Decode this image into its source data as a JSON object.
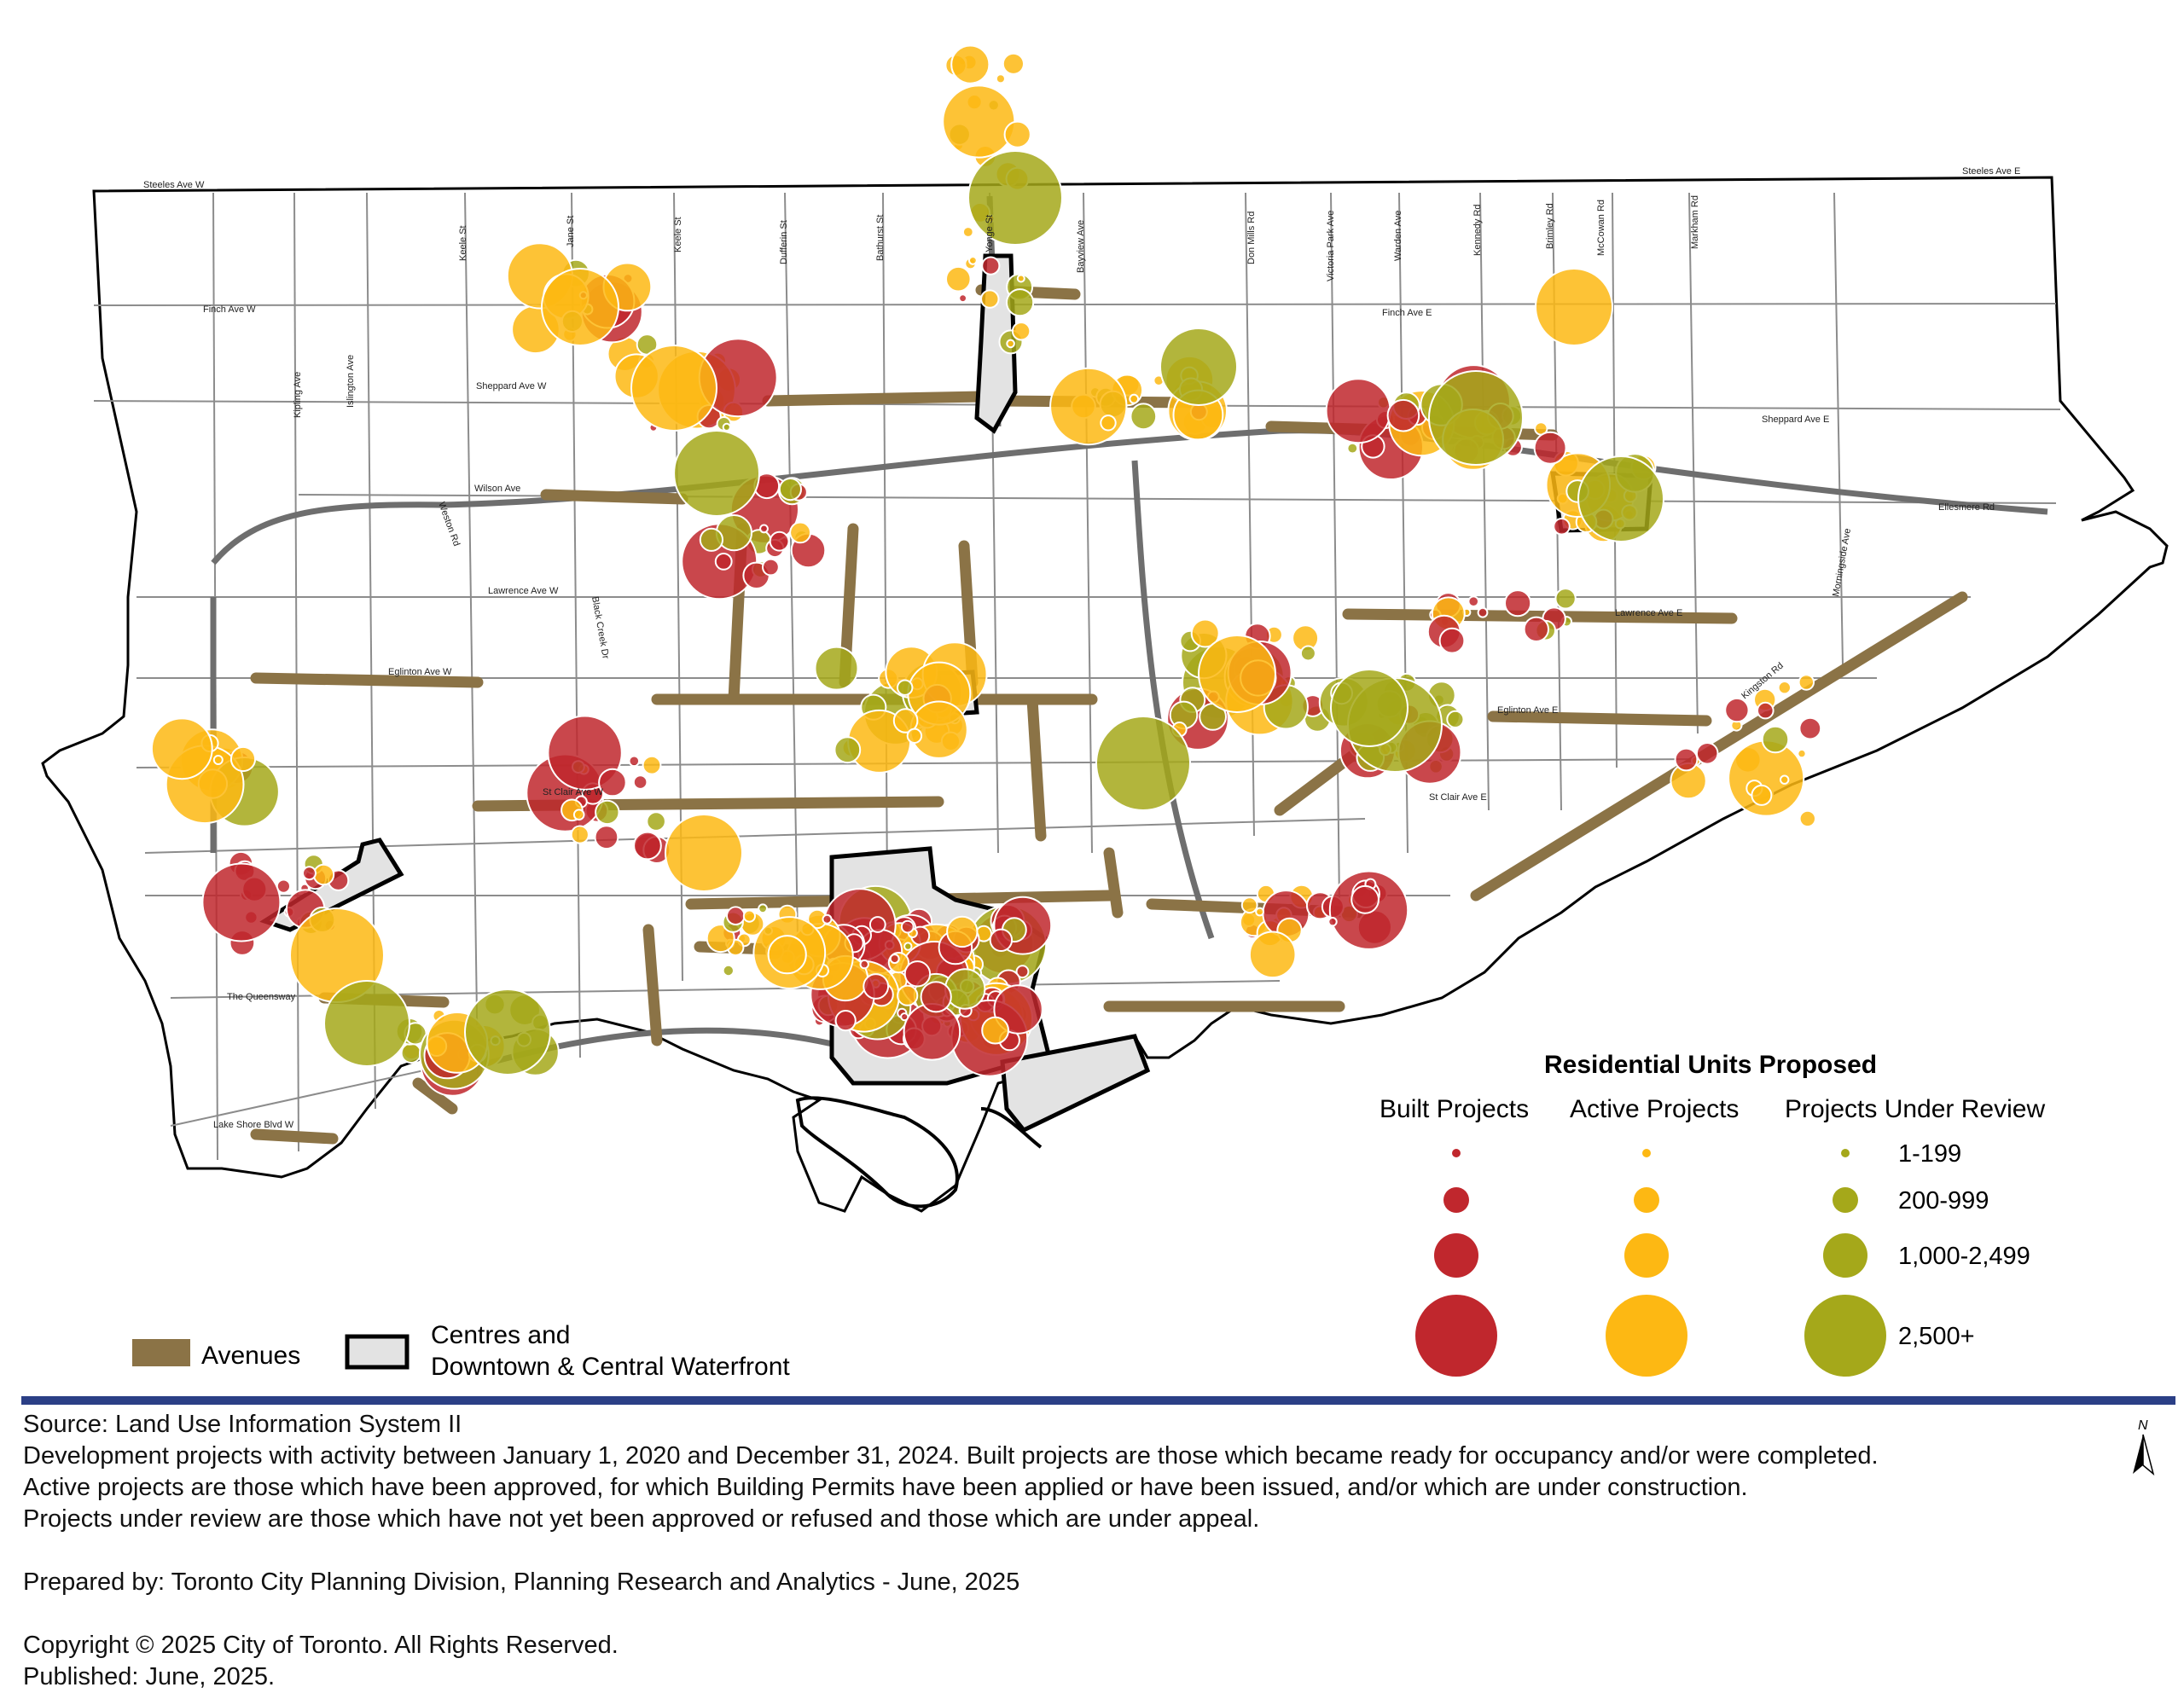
{
  "roads": {
    "steeles_w": "Steeles Ave W",
    "steeles_e": "Steeles Ave E",
    "finch_w": "Finch Ave W",
    "finch_e": "Finch Ave E",
    "sheppard_w": "Sheppard Ave W",
    "sheppard_e": "Sheppard Ave E",
    "wilson": "Wilson Ave",
    "ellesmere": "Ellesmere Rd",
    "lawrence_w": "Lawrence Ave W",
    "lawrence_e": "Lawrence Ave E",
    "eglinton_w": "Eglinton Ave W",
    "eglinton_e": "Eglinton Ave E",
    "st_clair_w": "St Clair Ave W",
    "st_clair_e": "St Clair Ave E",
    "queensway": "The Queensway",
    "lake_shore": "Lake Shore Blvd W",
    "kipling": "Kipling Ave",
    "islington": "Islington Ave",
    "keele_w": "Keele St",
    "jane": "Jane St",
    "keele": "Keele St",
    "dufferin": "Dufferin St",
    "bathurst": "Bathurst St",
    "yonge": "Yonge St",
    "bayview": "Bayview Ave",
    "don_mills": "Don Mills Rd",
    "victoria_park": "Victoria Park Ave",
    "warden": "Warden Ave",
    "kennedy": "Kennedy Rd",
    "brimley": "Brimley Rd",
    "mccowan": "McCowan Rd",
    "markham": "Markham Rd",
    "morningside": "Morningside Ave",
    "kingston": "Kingston Rd",
    "weston": "Weston Rd",
    "black_creek": "Black Creek Dr"
  },
  "legend": {
    "title": "Residential Units Proposed",
    "built": "Built Projects",
    "active": "Active Projects",
    "review": "Projects Under Review",
    "ranges": [
      "1-199",
      "200-999",
      "1,000-2,499",
      "2,500+"
    ],
    "avenues": "Avenues",
    "centres_line1": "Centres and",
    "centres_line2": "Downtown & Central Waterfront",
    "colors": {
      "built": "#c0272d",
      "active": "#fdb813",
      "review": "#a5a81a",
      "avenue": "#8b7346",
      "centre_fill": "#e3e3e3"
    }
  },
  "footer": {
    "source": "Source: Land Use Information System II",
    "line1": "Development projects with activity between January 1, 2020 and December 31, 2024. Built projects are those which became ready for occupancy and/or were completed.",
    "line2": "Active projects are those which have been approved, for which Building Permits have been applied or have been issued, and/or which are under construction.",
    "line3": "Projects under review are those which have not yet been approved or refused and those which are under appeal.",
    "prepared": "Prepared by: Toronto City Planning Division, Planning Research and Analytics - June, 2025",
    "copyright": "Copyright © 2025 City of Toronto. All Rights Reserved.",
    "published": "Published: June, 2025."
  },
  "north_label": "N"
}
